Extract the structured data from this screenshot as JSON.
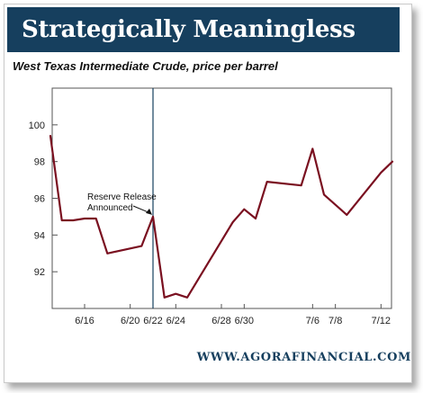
{
  "title": "Strategically Meaningless",
  "footer": "WWW.AGORAFINANCIAL.COM",
  "colors": {
    "title_bar": "#163f5e",
    "line": "#7a1020",
    "marker": "#163f5e",
    "grid": "#cccccc",
    "footer": "#163f5e"
  },
  "chart_data": {
    "type": "line",
    "title": "West Texas Intermediate Crude, price per barrel",
    "xlabel": "",
    "ylabel": "",
    "x_ticks": [
      "6/16",
      "6/20",
      "6/22",
      "6/24",
      "6/28",
      "6/30",
      "7/6",
      "7/8",
      "7/12"
    ],
    "y_ticks": [
      92,
      94,
      96,
      98,
      100
    ],
    "ylim": [
      90,
      102
    ],
    "grid": false,
    "series": [
      {
        "values": [
          {
            "x": "6/13",
            "y": 99.4
          },
          {
            "x": "6/14",
            "y": 94.8
          },
          {
            "x": "6/15",
            "y": 94.8
          },
          {
            "x": "6/16",
            "y": 94.9
          },
          {
            "x": "6/17",
            "y": 94.9
          },
          {
            "x": "6/18",
            "y": 93.0
          },
          {
            "x": "6/21",
            "y": 93.4
          },
          {
            "x": "6/22",
            "y": 95.0
          },
          {
            "x": "6/23",
            "y": 90.6
          },
          {
            "x": "6/24",
            "y": 90.8
          },
          {
            "x": "6/25",
            "y": 90.6
          },
          {
            "x": "6/29",
            "y": 94.7
          },
          {
            "x": "6/30",
            "y": 95.4
          },
          {
            "x": "7/1",
            "y": 94.9
          },
          {
            "x": "7/2",
            "y": 96.9
          },
          {
            "x": "7/5",
            "y": 96.7
          },
          {
            "x": "7/6",
            "y": 98.7
          },
          {
            "x": "7/7",
            "y": 96.2
          },
          {
            "x": "7/9",
            "y": 95.1
          },
          {
            "x": "7/12",
            "y": 97.4
          },
          {
            "x": "7/13",
            "y": 98.0
          }
        ]
      }
    ],
    "annotations": [
      {
        "text": [
          "Reserve Release",
          "Announced"
        ],
        "x": "6/22",
        "y": 95.0
      }
    ],
    "reference_line": {
      "x": "6/22",
      "orientation": "vertical"
    }
  }
}
